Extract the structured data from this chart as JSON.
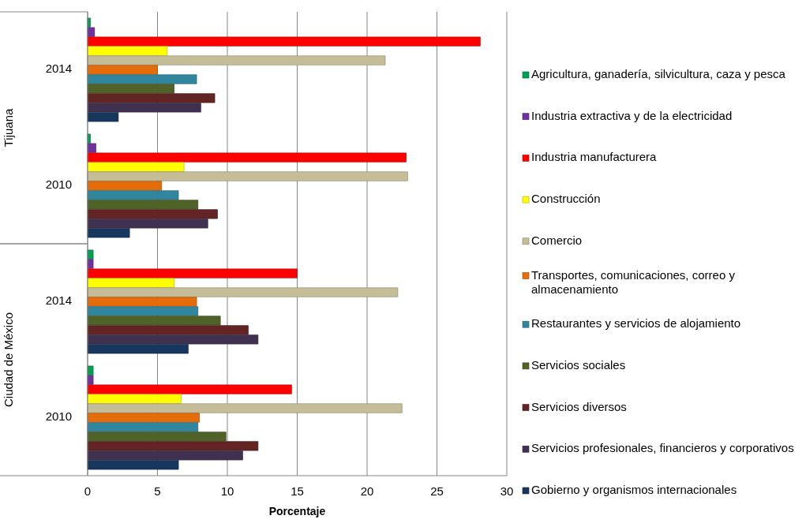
{
  "chart_data": {
    "type": "bar",
    "orientation": "horizontal",
    "xlabel": "Porcentaje",
    "categories": [
      "2014",
      "2010",
      "2014",
      "2010"
    ],
    "annotations": [
      "Tijuana",
      "Ciudad de México"
    ],
    "xlim": [
      0,
      30
    ],
    "xticks": [
      0,
      5,
      10,
      15,
      20,
      25,
      30
    ],
    "grid": "x",
    "legend": "right",
    "series": [
      {
        "name": "Agricultura, ganadería, silvicultura, caza y pesca",
        "color": "#00a050",
        "values": [
          0.2,
          0.2,
          0.4,
          0.4
        ]
      },
      {
        "name": "Industria extractiva y de la electricidad",
        "color": "#7030a0",
        "values": [
          0.5,
          0.6,
          0.4,
          0.4
        ]
      },
      {
        "name": "Industria manufacturera",
        "color": "#ff0000",
        "values": [
          28.1,
          22.8,
          15.0,
          14.6
        ]
      },
      {
        "name": "Construcción",
        "color": "#ffff00",
        "values": [
          5.7,
          6.9,
          6.2,
          6.7
        ]
      },
      {
        "name": "Comercio",
        "color": "#c4bd97",
        "values": [
          21.3,
          22.9,
          22.2,
          22.5
        ]
      },
      {
        "name": "Transportes, comunicaciones, correo y almacenamiento",
        "color": "#e46c0a",
        "values": [
          5.0,
          5.3,
          7.8,
          8.0
        ]
      },
      {
        "name": "Restaurantes y servicios de alojamiento",
        "color": "#31859c",
        "values": [
          7.8,
          6.5,
          7.9,
          7.9
        ]
      },
      {
        "name": "Servicios sociales",
        "color": "#4f6228",
        "values": [
          6.2,
          7.9,
          9.5,
          9.9
        ]
      },
      {
        "name": "Servicios diversos",
        "color": "#632523",
        "values": [
          9.1,
          9.3,
          11.5,
          12.2
        ]
      },
      {
        "name": "Servicios profesionales, financieros y corporativos",
        "color": "#403151",
        "values": [
          8.1,
          8.6,
          12.2,
          11.1
        ]
      },
      {
        "name": "Gobierno y organismos internacionales",
        "color": "#17375e",
        "values": [
          2.2,
          3.0,
          7.2,
          6.5
        ]
      }
    ]
  }
}
